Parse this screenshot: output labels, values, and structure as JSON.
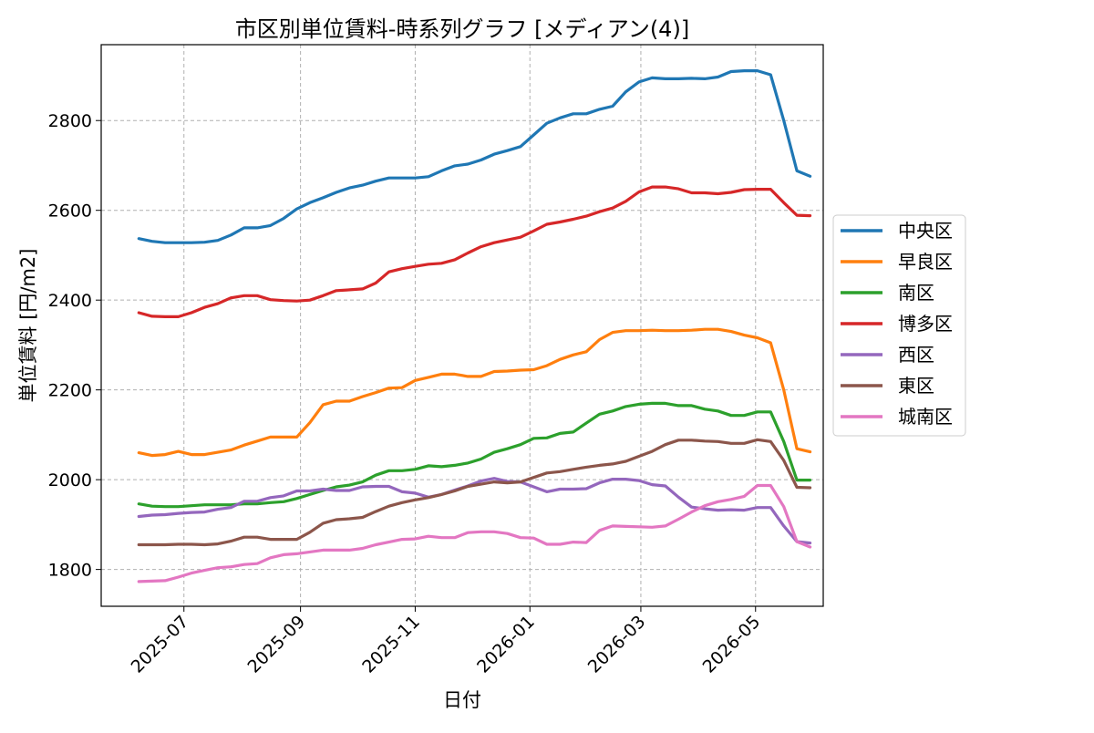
{
  "chart_data": {
    "type": "line",
    "title": "市区別単位賃料-時系列グラフ [メディアン(4)]",
    "xlabel": "日付",
    "ylabel": "単位賃料 [円/m2]",
    "ylim": [
      1718,
      2969
    ],
    "y_ticks": [
      1800,
      2000,
      2200,
      2400,
      2600,
      2800
    ],
    "x_range": [
      "2025-05-18",
      "2026-06-06"
    ],
    "x_ticks": [
      {
        "label": "2025-07",
        "date": "2025-07-01"
      },
      {
        "label": "2025-09",
        "date": "2025-09-01"
      },
      {
        "label": "2025-11",
        "date": "2025-11-01"
      },
      {
        "label": "2026-01",
        "date": "2026-01-01"
      },
      {
        "label": "2026-03",
        "date": "2026-03-01"
      },
      {
        "label": "2026-05",
        "date": "2026-05-01"
      }
    ],
    "grid": true,
    "legend_position": "right",
    "x": [
      "2025-06-07",
      "2025-06-14",
      "2025-06-21",
      "2025-06-28",
      "2025-07-05",
      "2025-07-12",
      "2025-07-19",
      "2025-07-26",
      "2025-08-02",
      "2025-08-09",
      "2025-08-16",
      "2025-08-23",
      "2025-08-30",
      "2025-09-06",
      "2025-09-13",
      "2025-09-20",
      "2025-09-27",
      "2025-10-04",
      "2025-10-11",
      "2025-10-18",
      "2025-10-25",
      "2025-11-01",
      "2025-11-08",
      "2025-11-15",
      "2025-11-22",
      "2025-11-29",
      "2025-12-06",
      "2025-12-13",
      "2025-12-20",
      "2025-12-27",
      "2026-01-03",
      "2026-01-10",
      "2026-01-17",
      "2026-01-24",
      "2026-01-31",
      "2026-02-07",
      "2026-02-14",
      "2026-02-21",
      "2026-02-28",
      "2026-03-07",
      "2026-03-14",
      "2026-03-21",
      "2026-03-28",
      "2026-04-04",
      "2026-04-11",
      "2026-04-18",
      "2026-04-25",
      "2026-05-02",
      "2026-05-09",
      "2026-05-16",
      "2026-05-23",
      "2026-05-30"
    ],
    "series": [
      {
        "name": "中央区",
        "color": "#1f77b4",
        "values": [
          2537,
          2531,
          2528,
          2528,
          2528,
          2529,
          2533,
          2545,
          2561,
          2561,
          2566,
          2582,
          2603,
          2617,
          2628,
          2640,
          2650,
          2656,
          2665,
          2672,
          2672,
          2672,
          2675,
          2688,
          2699,
          2703,
          2712,
          2725,
          2733,
          2742,
          2768,
          2794,
          2806,
          2815,
          2815,
          2825,
          2832,
          2864,
          2886,
          2895,
          2893,
          2893,
          2894,
          2893,
          2897,
          2909,
          2911,
          2911,
          2902,
          2800,
          2688,
          2676
        ]
      },
      {
        "name": "早良区",
        "color": "#ff7f0e",
        "values": [
          2060,
          2054,
          2056,
          2063,
          2056,
          2056,
          2061,
          2066,
          2077,
          2086,
          2095,
          2095,
          2095,
          2127,
          2167,
          2175,
          2175,
          2185,
          2194,
          2204,
          2205,
          2221,
          2228,
          2235,
          2235,
          2230,
          2230,
          2241,
          2242,
          2244,
          2245,
          2254,
          2268,
          2278,
          2285,
          2312,
          2328,
          2332,
          2332,
          2333,
          2332,
          2332,
          2333,
          2335,
          2335,
          2330,
          2322,
          2316,
          2305,
          2200,
          2069,
          2062
        ]
      },
      {
        "name": "南区",
        "color": "#2ca02c",
        "values": [
          1946,
          1941,
          1940,
          1940,
          1942,
          1944,
          1944,
          1944,
          1946,
          1946,
          1949,
          1951,
          1958,
          1967,
          1976,
          1984,
          1988,
          1995,
          2010,
          2020,
          2020,
          2023,
          2031,
          2029,
          2032,
          2037,
          2046,
          2061,
          2069,
          2078,
          2092,
          2093,
          2103,
          2106,
          2126,
          2146,
          2153,
          2163,
          2168,
          2170,
          2170,
          2165,
          2165,
          2157,
          2153,
          2143,
          2143,
          2151,
          2151,
          2085,
          1999,
          1999
        ]
      },
      {
        "name": "博多区",
        "color": "#d62728",
        "values": [
          2372,
          2364,
          2363,
          2363,
          2372,
          2384,
          2392,
          2405,
          2410,
          2410,
          2401,
          2399,
          2398,
          2400,
          2410,
          2421,
          2423,
          2425,
          2438,
          2463,
          2470,
          2475,
          2480,
          2482,
          2490,
          2505,
          2519,
          2528,
          2534,
          2540,
          2554,
          2569,
          2574,
          2580,
          2587,
          2597,
          2605,
          2620,
          2641,
          2652,
          2652,
          2648,
          2639,
          2639,
          2637,
          2640,
          2646,
          2647,
          2647,
          2617,
          2589,
          2588
        ]
      },
      {
        "name": "西区",
        "color": "#9467bd",
        "values": [
          1918,
          1921,
          1922,
          1925,
          1927,
          1928,
          1934,
          1938,
          1952,
          1952,
          1960,
          1964,
          1975,
          1975,
          1979,
          1976,
          1976,
          1984,
          1985,
          1985,
          1973,
          1970,
          1961,
          1967,
          1977,
          1986,
          1997,
          2003,
          1996,
          1995,
          1984,
          1973,
          1979,
          1979,
          1980,
          1993,
          2001,
          2001,
          1998,
          1989,
          1986,
          1961,
          1939,
          1935,
          1932,
          1933,
          1932,
          1938,
          1938,
          1897,
          1862,
          1859
        ]
      },
      {
        "name": "東区",
        "color": "#8c564b",
        "values": [
          1855,
          1855,
          1855,
          1856,
          1856,
          1855,
          1857,
          1863,
          1872,
          1872,
          1867,
          1867,
          1867,
          1883,
          1903,
          1911,
          1913,
          1916,
          1929,
          1941,
          1949,
          1955,
          1960,
          1967,
          1975,
          1985,
          1990,
          1995,
          1993,
          1995,
          2005,
          2015,
          2018,
          2023,
          2028,
          2032,
          2035,
          2041,
          2052,
          2063,
          2078,
          2088,
          2088,
          2086,
          2085,
          2081,
          2081,
          2089,
          2085,
          2043,
          1983,
          1982
        ]
      },
      {
        "name": "城南区",
        "color": "#e377c2",
        "values": [
          1773,
          1774,
          1775,
          1783,
          1792,
          1798,
          1804,
          1806,
          1811,
          1813,
          1826,
          1833,
          1835,
          1839,
          1843,
          1843,
          1843,
          1847,
          1855,
          1861,
          1867,
          1868,
          1874,
          1871,
          1871,
          1882,
          1884,
          1884,
          1880,
          1871,
          1870,
          1856,
          1856,
          1861,
          1860,
          1887,
          1897,
          1896,
          1895,
          1894,
          1897,
          1912,
          1928,
          1942,
          1951,
          1956,
          1963,
          1987,
          1987,
          1940,
          1862,
          1850
        ]
      }
    ]
  }
}
